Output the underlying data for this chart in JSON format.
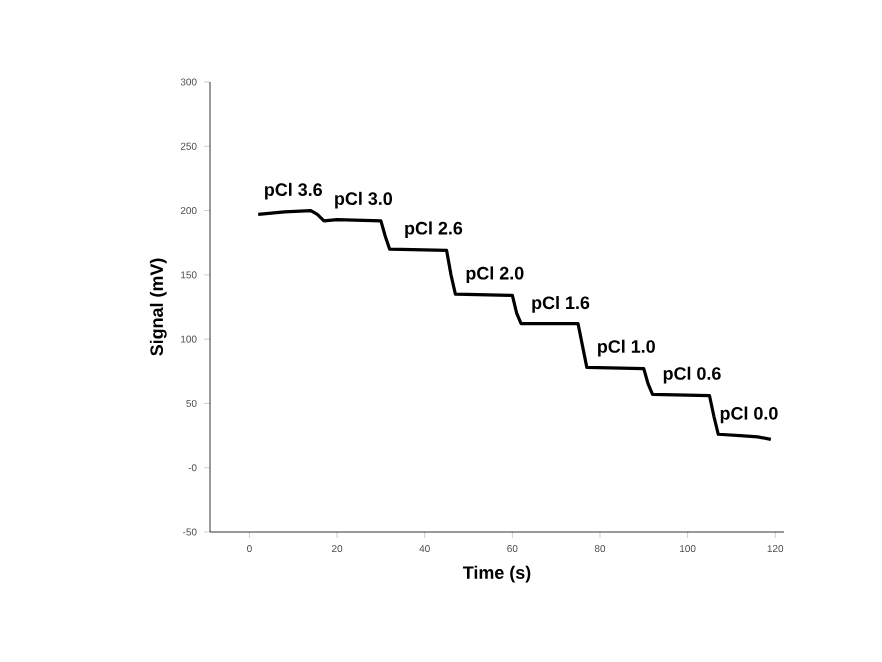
{
  "chart_data": {
    "type": "line",
    "xlabel": "Time (s)",
    "ylabel": "Signal (mV)",
    "x": [
      2,
      8,
      14,
      15.5,
      17,
      20,
      30,
      31,
      32,
      45,
      46,
      47,
      60,
      61,
      62,
      75,
      76,
      77,
      90,
      91,
      92,
      105,
      106,
      107,
      112,
      116,
      119
    ],
    "values": [
      197,
      199,
      200,
      197,
      192,
      193,
      192,
      180,
      170,
      169,
      150,
      135,
      134,
      120,
      112,
      112,
      95,
      78,
      77,
      65,
      57,
      56,
      40,
      26,
      25,
      24,
      22
    ],
    "color": "#000000",
    "marker": "none",
    "line_style": "solid",
    "grid": false,
    "xlim": [
      -9,
      122
    ],
    "xticks": [
      0,
      20,
      40,
      60,
      80,
      100,
      120
    ],
    "ylim": [
      -50,
      300
    ],
    "yticks": [
      -50,
      {
        "value": 0,
        "label": "-0"
      },
      50,
      100,
      150,
      200,
      250,
      300
    ],
    "annotations": [
      {
        "text": "pCl 3.6",
        "x": 10,
        "y": 200
      },
      {
        "text": "pCl 3.0",
        "x": 26,
        "y": 193
      },
      {
        "text": "pCl 2.6",
        "x": 42,
        "y": 170
      },
      {
        "text": "pCl 2.0",
        "x": 56,
        "y": 135
      },
      {
        "text": "pCl 1.6",
        "x": 71,
        "y": 112
      },
      {
        "text": "pCl 1.0",
        "x": 86,
        "y": 78
      },
      {
        "text": "pCl 0.6",
        "x": 101,
        "y": 57
      },
      {
        "text": "pCl 0.0",
        "x": 114,
        "y": 26
      }
    ]
  }
}
